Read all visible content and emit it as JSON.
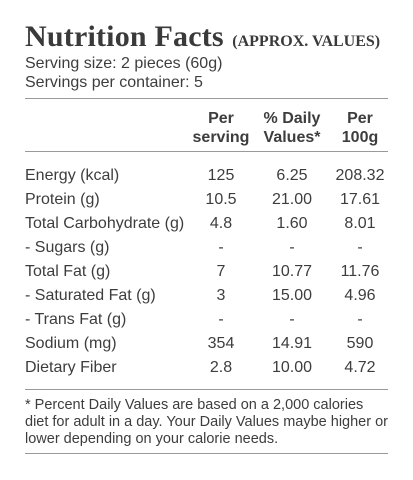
{
  "title": "Nutrition Facts",
  "subtitle": "(APPROX. VALUES)",
  "serving_size": "Serving size: 2 pieces (60g)",
  "servings_per_container": "Servings per container: 5",
  "columns": {
    "per_serving": [
      "Per",
      "serving"
    ],
    "daily_values": [
      "% Daily",
      "Values*"
    ],
    "per_100g": [
      "Per",
      "100g"
    ]
  },
  "rows": [
    {
      "label": "Energy (kcal)",
      "per_serving": "125",
      "daily": "6.25",
      "per_100g": "208.32"
    },
    {
      "label": "Protein (g)",
      "per_serving": "10.5",
      "daily": "21.00",
      "per_100g": "17.61"
    },
    {
      "label": "Total Carbohydrate (g)",
      "per_serving": "4.8",
      "daily": "1.60",
      "per_100g": "8.01"
    },
    {
      "label": "- Sugars (g)",
      "per_serving": "-",
      "daily": "-",
      "per_100g": "-"
    },
    {
      "label": "Total Fat (g)",
      "per_serving": "7",
      "daily": "10.77",
      "per_100g": "11.76"
    },
    {
      "label": "- Saturated Fat (g)",
      "per_serving": "3",
      "daily": "15.00",
      "per_100g": "4.96"
    },
    {
      "label": "- Trans Fat (g)",
      "per_serving": "-",
      "daily": "-",
      "per_100g": "-"
    },
    {
      "label": "Sodium (mg)",
      "per_serving": "354",
      "daily": "14.91",
      "per_100g": "590"
    },
    {
      "label": "Dietary Fiber",
      "per_serving": "2.8",
      "daily": "10.00",
      "per_100g": "4.72"
    }
  ],
  "footnote": "* Percent Daily Values are based on a 2,000 calories diet for adult in a day. Your Daily Values maybe higher or lower depending on your calorie needs."
}
